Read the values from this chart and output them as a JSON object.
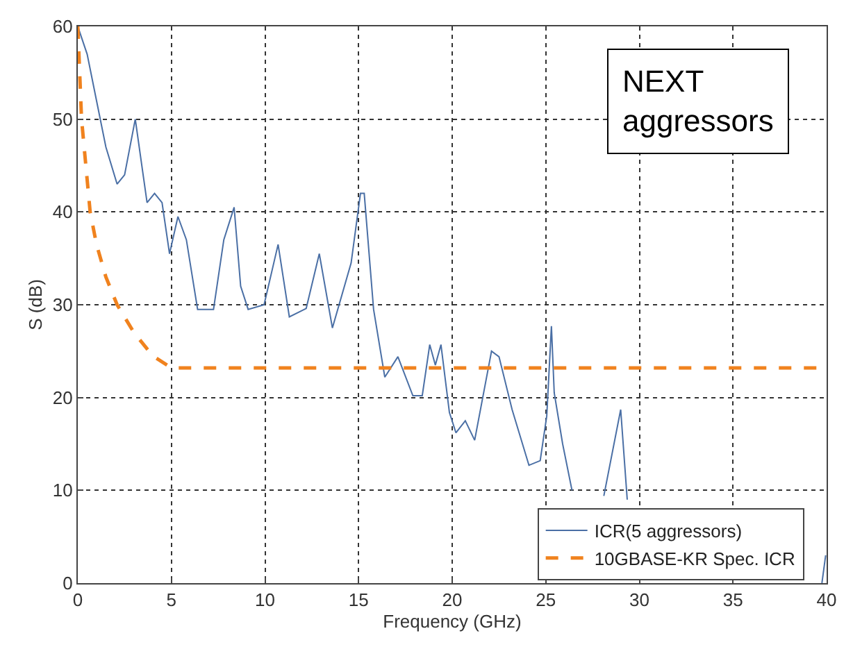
{
  "chart_data": {
    "type": "line",
    "xlabel": "Frequency (GHz)",
    "ylabel": "S (dB)",
    "annotations": [
      "NEXT\naggressors"
    ],
    "series": [
      {
        "name": "ICR(5 aggressors)",
        "color": "#4a6fa5",
        "line_style": "solid",
        "x": [
          0,
          0.5,
          1,
          1.5,
          2.1,
          2.5,
          3.07,
          3.7,
          4.1,
          4.5,
          4.9,
          5.35,
          5.8,
          6.4,
          7.25,
          7.8,
          8.35,
          8.7,
          9.1,
          9.95,
          10.7,
          11.3,
          12.2,
          12.9,
          13.6,
          14.6,
          15.1,
          15.3,
          15.8,
          16.4,
          17.1,
          17.9,
          18.4,
          18.8,
          19.1,
          19.4,
          19.85,
          20.2,
          20.7,
          21.2,
          22.1,
          22.5,
          23.2,
          24.1,
          24.7,
          25.05,
          25.3,
          25.45,
          25.9,
          26.4,
          27.2,
          28.1,
          29,
          29.35,
          29.5,
          39.75,
          39.95
        ],
        "values": [
          60,
          57,
          52,
          47,
          43,
          44,
          50,
          41,
          42,
          41,
          35.5,
          39.5,
          37,
          29.5,
          29.5,
          37,
          40.5,
          32,
          29.5,
          30,
          36.5,
          28.7,
          29.6,
          35.5,
          27.5,
          34.5,
          42,
          42,
          29.5,
          22.2,
          24.4,
          20.2,
          20.2,
          25.7,
          23.5,
          25.7,
          18.4,
          16.2,
          17.5,
          15.4,
          25,
          24.4,
          18.7,
          12.7,
          13.2,
          18,
          27.7,
          20.5,
          15,
          10,
          null,
          9.4,
          18.7,
          9,
          null,
          0,
          3
        ]
      },
      {
        "name": "10GBASE-KR Spec. ICR",
        "color": "#f0821e",
        "line_style": "dashed",
        "x": [
          0,
          0.2,
          0.66,
          1,
          1.5,
          2.1,
          3,
          4,
          5,
          40
        ],
        "values": [
          60,
          50,
          40,
          36.5,
          33,
          30,
          27,
          24.5,
          23.2,
          23.2
        ]
      }
    ],
    "xlim": [
      0,
      40
    ],
    "xticks": [
      0,
      5,
      10,
      15,
      20,
      25,
      30,
      35,
      40
    ],
    "ylim": [
      0,
      60
    ],
    "yticks": [
      0,
      10,
      20,
      30,
      40,
      50,
      60
    ],
    "grid": true,
    "legend": "bottom right",
    "marker": "none"
  }
}
